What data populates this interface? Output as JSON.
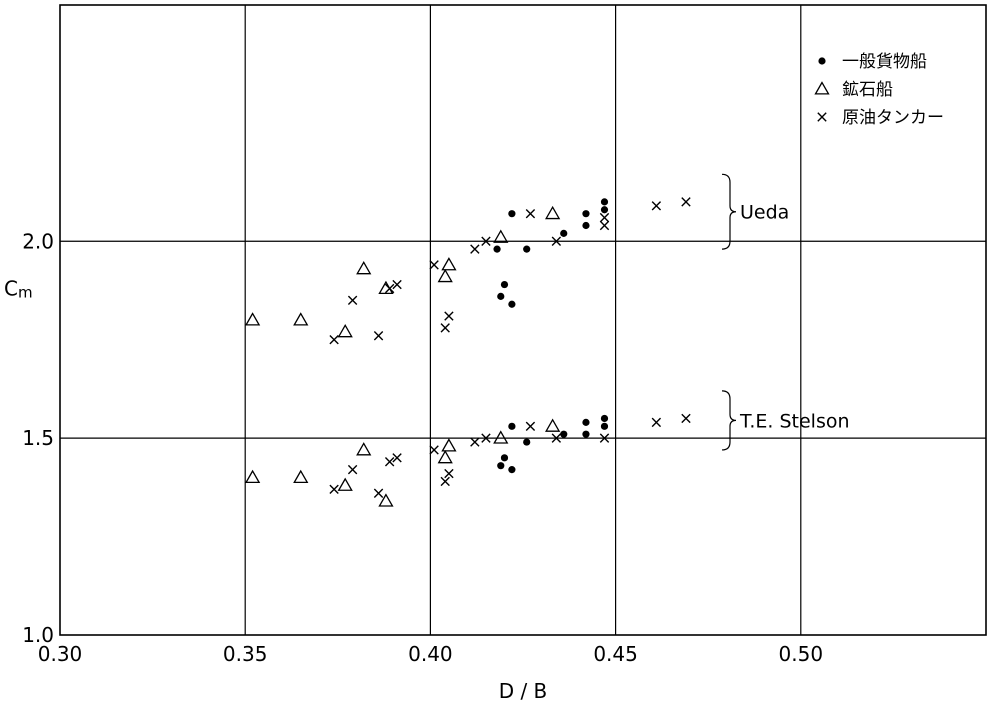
{
  "chart_data": {
    "type": "scatter",
    "xlabel": "D / B",
    "ylabel": "Cm",
    "xlim": [
      0.3,
      0.55
    ],
    "ylim": [
      1.0,
      2.6
    ],
    "x_ticks": [
      0.3,
      0.35,
      0.4,
      0.45,
      0.5
    ],
    "x_tick_labels": [
      "0.30",
      "0.35",
      "0.40",
      "0.45",
      "0.50"
    ],
    "y_ticks": [
      1.0,
      1.5,
      2.0
    ],
    "y_tick_labels": [
      "1.0",
      "1.5",
      "2.0"
    ],
    "grid": true,
    "legend_position": "top-right",
    "legend": [
      {
        "marker": "dot",
        "label": "一般貨物船"
      },
      {
        "marker": "triangle",
        "label": "鉱石船"
      },
      {
        "marker": "cross",
        "label": "原油タンカー"
      }
    ],
    "annotations": [
      {
        "label": "Ueda",
        "y_range": [
          1.98,
          2.17
        ]
      },
      {
        "label": "T.E. Stelson",
        "y_range": [
          1.47,
          1.62
        ]
      }
    ],
    "series": [
      {
        "group": "Ueda",
        "marker": "dot",
        "points": [
          [
            0.418,
            1.98
          ],
          [
            0.419,
            1.86
          ],
          [
            0.42,
            1.89
          ],
          [
            0.422,
            2.07
          ],
          [
            0.422,
            1.84
          ],
          [
            0.426,
            1.98
          ],
          [
            0.436,
            2.02
          ],
          [
            0.442,
            2.07
          ],
          [
            0.442,
            2.04
          ],
          [
            0.447,
            2.1
          ],
          [
            0.447,
            2.08
          ]
        ]
      },
      {
        "group": "Ueda",
        "marker": "triangle",
        "points": [
          [
            0.352,
            1.8
          ],
          [
            0.365,
            1.8
          ],
          [
            0.377,
            1.77
          ],
          [
            0.382,
            1.93
          ],
          [
            0.388,
            1.88
          ],
          [
            0.404,
            1.91
          ],
          [
            0.405,
            1.94
          ],
          [
            0.419,
            2.01
          ],
          [
            0.433,
            2.07
          ]
        ]
      },
      {
        "group": "Ueda",
        "marker": "cross",
        "points": [
          [
            0.374,
            1.75
          ],
          [
            0.379,
            1.85
          ],
          [
            0.386,
            1.76
          ],
          [
            0.389,
            1.88
          ],
          [
            0.391,
            1.89
          ],
          [
            0.401,
            1.94
          ],
          [
            0.404,
            1.78
          ],
          [
            0.405,
            1.81
          ],
          [
            0.412,
            1.98
          ],
          [
            0.415,
            2.0
          ],
          [
            0.427,
            2.07
          ],
          [
            0.434,
            2.0
          ],
          [
            0.447,
            2.06
          ],
          [
            0.447,
            2.04
          ],
          [
            0.461,
            2.09
          ],
          [
            0.469,
            2.1
          ]
        ]
      },
      {
        "group": "T.E.Stelson",
        "marker": "dot",
        "points": [
          [
            0.419,
            1.43
          ],
          [
            0.42,
            1.45
          ],
          [
            0.422,
            1.42
          ],
          [
            0.422,
            1.53
          ],
          [
            0.426,
            1.49
          ],
          [
            0.436,
            1.51
          ],
          [
            0.442,
            1.54
          ],
          [
            0.442,
            1.51
          ],
          [
            0.447,
            1.55
          ],
          [
            0.447,
            1.53
          ]
        ]
      },
      {
        "group": "T.E.Stelson",
        "marker": "triangle",
        "points": [
          [
            0.352,
            1.4
          ],
          [
            0.365,
            1.4
          ],
          [
            0.377,
            1.38
          ],
          [
            0.382,
            1.47
          ],
          [
            0.388,
            1.34
          ],
          [
            0.404,
            1.45
          ],
          [
            0.405,
            1.48
          ],
          [
            0.419,
            1.5
          ],
          [
            0.433,
            1.53
          ]
        ]
      },
      {
        "group": "T.E.Stelson",
        "marker": "cross",
        "points": [
          [
            0.374,
            1.37
          ],
          [
            0.379,
            1.42
          ],
          [
            0.386,
            1.36
          ],
          [
            0.389,
            1.44
          ],
          [
            0.391,
            1.45
          ],
          [
            0.401,
            1.47
          ],
          [
            0.404,
            1.39
          ],
          [
            0.405,
            1.41
          ],
          [
            0.412,
            1.49
          ],
          [
            0.415,
            1.5
          ],
          [
            0.427,
            1.53
          ],
          [
            0.434,
            1.5
          ],
          [
            0.447,
            1.5
          ],
          [
            0.461,
            1.54
          ],
          [
            0.469,
            1.55
          ]
        ]
      }
    ]
  }
}
